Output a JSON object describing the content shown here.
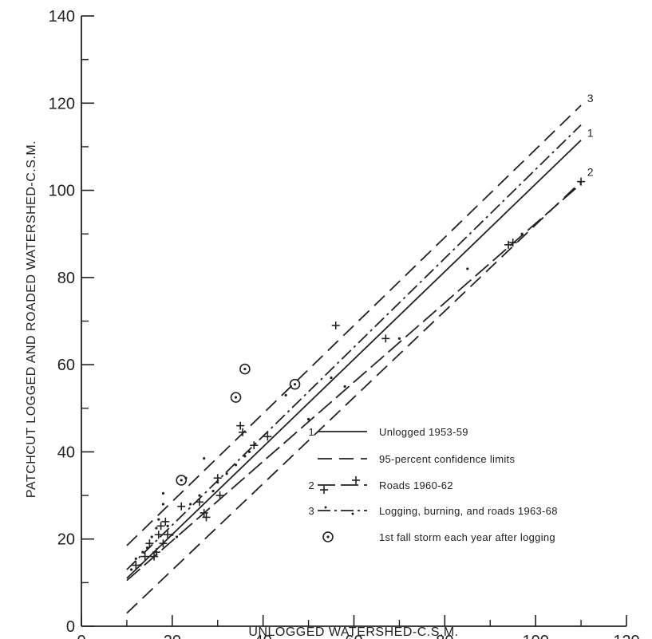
{
  "chart_data": {
    "type": "scatter",
    "xlabel": "UNLOGGED WATERSHED-C.S.M.",
    "ylabel": "PATCHCUT LOGGED AND ROADED WATERSHED-C.S.M.",
    "xlim": [
      0,
      120
    ],
    "ylim": [
      0,
      140
    ],
    "xticks": [
      "0",
      "20",
      "40",
      "60",
      "80",
      "100",
      "120"
    ],
    "yticks": [
      "0",
      "20",
      "40",
      "60",
      "80",
      "100",
      "120",
      "140"
    ],
    "grid": false,
    "legend_position": "bottom-right",
    "lines": [
      {
        "id": "1",
        "name": "Unlogged 1953-59",
        "style": "solid",
        "x": [
          10,
          110
        ],
        "y": [
          11,
          111.5
        ]
      },
      {
        "id": "ci-upper",
        "name": "95-percent confidence limits",
        "style": "dashed",
        "x": [
          10,
          110
        ],
        "y": [
          18.5,
          119.5
        ]
      },
      {
        "id": "ci-lower",
        "name": "95-percent confidence limits",
        "style": "dashed",
        "x": [
          10,
          110
        ],
        "y": [
          3,
          102
        ]
      },
      {
        "id": "2",
        "name": "Roads 1960-62",
        "style": "dash-plus",
        "x": [
          10,
          110
        ],
        "y": [
          10.5,
          101.5
        ]
      },
      {
        "id": "3",
        "name": "Logging, burning, and roads 1963-68",
        "style": "dash-dot",
        "x": [
          10,
          110
        ],
        "y": [
          13,
          115
        ]
      }
    ],
    "line_end_labels": [
      {
        "text": "1",
        "x": 111,
        "y": 113
      },
      {
        "text": "2",
        "x": 111,
        "y": 104
      },
      {
        "text": "3",
        "x": 111,
        "y": 121
      }
    ],
    "series": [
      {
        "name": "Roads 1960-62",
        "marker": "plus",
        "points": [
          [
            12,
            14
          ],
          [
            14,
            16
          ],
          [
            15,
            19
          ],
          [
            16,
            16
          ],
          [
            16.5,
            17
          ],
          [
            17,
            21
          ],
          [
            17.5,
            23
          ],
          [
            18,
            19
          ],
          [
            18.5,
            24
          ],
          [
            19,
            21
          ],
          [
            22,
            27.5
          ],
          [
            26,
            28.5
          ],
          [
            27,
            26
          ],
          [
            27.5,
            25
          ],
          [
            30,
            34
          ],
          [
            30.5,
            30
          ],
          [
            35,
            46
          ],
          [
            35.5,
            44.5
          ],
          [
            38,
            41.5
          ],
          [
            41,
            43.5
          ],
          [
            56,
            69
          ],
          [
            67,
            66
          ],
          [
            94,
            87.5
          ],
          [
            95,
            88
          ],
          [
            110,
            102
          ]
        ]
      },
      {
        "name": "Logging, burning, and roads 1963-68",
        "marker": "dot",
        "points": [
          [
            11,
            13
          ],
          [
            12,
            15.5
          ],
          [
            13,
            14
          ],
          [
            13.5,
            17
          ],
          [
            14.5,
            18
          ],
          [
            15.5,
            20.5
          ],
          [
            16.5,
            22.5
          ],
          [
            17,
            24.5
          ],
          [
            18,
            28
          ],
          [
            18,
            30.5
          ],
          [
            19,
            23
          ],
          [
            20,
            21
          ],
          [
            21,
            20.5
          ],
          [
            23,
            34
          ],
          [
            24,
            28
          ],
          [
            26,
            30
          ],
          [
            27,
            38.5
          ],
          [
            29,
            31
          ],
          [
            30,
            33
          ],
          [
            32,
            35
          ],
          [
            34,
            37
          ],
          [
            36,
            39
          ],
          [
            37,
            40
          ],
          [
            45,
            53
          ],
          [
            50,
            47.5
          ],
          [
            55,
            57
          ],
          [
            58,
            55
          ],
          [
            70,
            66
          ],
          [
            85,
            82
          ],
          [
            97,
            90
          ]
        ]
      },
      {
        "name": "1st fall storm each year after logging",
        "marker": "circle-dot",
        "points": [
          [
            22,
            33.5
          ],
          [
            34,
            52.5
          ],
          [
            36,
            59
          ],
          [
            47,
            55.5
          ]
        ]
      }
    ],
    "legend": [
      {
        "key": "1",
        "label": "Unlogged 1953-59",
        "style": "solid"
      },
      {
        "key": "",
        "label": "95-percent confidence limits",
        "style": "dashed"
      },
      {
        "key": "2",
        "label": "Roads 1960-62",
        "style": "dash-plus"
      },
      {
        "key": "3",
        "label": "Logging, burning, and roads 1963-68",
        "style": "dash-dot"
      },
      {
        "key": "",
        "label": "1st fall storm each year after logging",
        "style": "circle-dot"
      }
    ]
  }
}
